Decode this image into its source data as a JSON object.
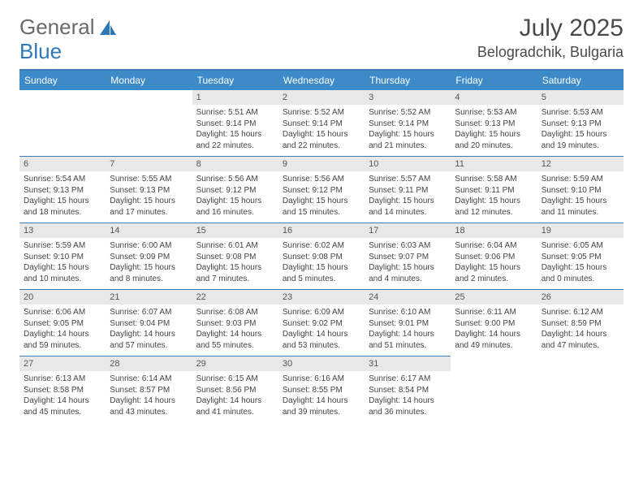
{
  "logo": {
    "text_left": "General",
    "text_right": "Blue",
    "brand_color": "#2f79b8"
  },
  "header": {
    "month_title": "July 2025",
    "location": "Belogradchik, Bulgaria"
  },
  "colors": {
    "header_bg": "#3d8ac9",
    "border": "#3d7cb8",
    "daynum_bg": "#e8e8e8",
    "text_dark": "#444444"
  },
  "day_labels": [
    "Sunday",
    "Monday",
    "Tuesday",
    "Wednesday",
    "Thursday",
    "Friday",
    "Saturday"
  ],
  "weeks": [
    [
      null,
      null,
      {
        "n": "1",
        "sr": "5:51 AM",
        "ss": "9:14 PM",
        "dl": "15 hours and 22 minutes."
      },
      {
        "n": "2",
        "sr": "5:52 AM",
        "ss": "9:14 PM",
        "dl": "15 hours and 22 minutes."
      },
      {
        "n": "3",
        "sr": "5:52 AM",
        "ss": "9:14 PM",
        "dl": "15 hours and 21 minutes."
      },
      {
        "n": "4",
        "sr": "5:53 AM",
        "ss": "9:13 PM",
        "dl": "15 hours and 20 minutes."
      },
      {
        "n": "5",
        "sr": "5:53 AM",
        "ss": "9:13 PM",
        "dl": "15 hours and 19 minutes."
      }
    ],
    [
      {
        "n": "6",
        "sr": "5:54 AM",
        "ss": "9:13 PM",
        "dl": "15 hours and 18 minutes."
      },
      {
        "n": "7",
        "sr": "5:55 AM",
        "ss": "9:13 PM",
        "dl": "15 hours and 17 minutes."
      },
      {
        "n": "8",
        "sr": "5:56 AM",
        "ss": "9:12 PM",
        "dl": "15 hours and 16 minutes."
      },
      {
        "n": "9",
        "sr": "5:56 AM",
        "ss": "9:12 PM",
        "dl": "15 hours and 15 minutes."
      },
      {
        "n": "10",
        "sr": "5:57 AM",
        "ss": "9:11 PM",
        "dl": "15 hours and 14 minutes."
      },
      {
        "n": "11",
        "sr": "5:58 AM",
        "ss": "9:11 PM",
        "dl": "15 hours and 12 minutes."
      },
      {
        "n": "12",
        "sr": "5:59 AM",
        "ss": "9:10 PM",
        "dl": "15 hours and 11 minutes."
      }
    ],
    [
      {
        "n": "13",
        "sr": "5:59 AM",
        "ss": "9:10 PM",
        "dl": "15 hours and 10 minutes."
      },
      {
        "n": "14",
        "sr": "6:00 AM",
        "ss": "9:09 PM",
        "dl": "15 hours and 8 minutes."
      },
      {
        "n": "15",
        "sr": "6:01 AM",
        "ss": "9:08 PM",
        "dl": "15 hours and 7 minutes."
      },
      {
        "n": "16",
        "sr": "6:02 AM",
        "ss": "9:08 PM",
        "dl": "15 hours and 5 minutes."
      },
      {
        "n": "17",
        "sr": "6:03 AM",
        "ss": "9:07 PM",
        "dl": "15 hours and 4 minutes."
      },
      {
        "n": "18",
        "sr": "6:04 AM",
        "ss": "9:06 PM",
        "dl": "15 hours and 2 minutes."
      },
      {
        "n": "19",
        "sr": "6:05 AM",
        "ss": "9:05 PM",
        "dl": "15 hours and 0 minutes."
      }
    ],
    [
      {
        "n": "20",
        "sr": "6:06 AM",
        "ss": "9:05 PM",
        "dl": "14 hours and 59 minutes."
      },
      {
        "n": "21",
        "sr": "6:07 AM",
        "ss": "9:04 PM",
        "dl": "14 hours and 57 minutes."
      },
      {
        "n": "22",
        "sr": "6:08 AM",
        "ss": "9:03 PM",
        "dl": "14 hours and 55 minutes."
      },
      {
        "n": "23",
        "sr": "6:09 AM",
        "ss": "9:02 PM",
        "dl": "14 hours and 53 minutes."
      },
      {
        "n": "24",
        "sr": "6:10 AM",
        "ss": "9:01 PM",
        "dl": "14 hours and 51 minutes."
      },
      {
        "n": "25",
        "sr": "6:11 AM",
        "ss": "9:00 PM",
        "dl": "14 hours and 49 minutes."
      },
      {
        "n": "26",
        "sr": "6:12 AM",
        "ss": "8:59 PM",
        "dl": "14 hours and 47 minutes."
      }
    ],
    [
      {
        "n": "27",
        "sr": "6:13 AM",
        "ss": "8:58 PM",
        "dl": "14 hours and 45 minutes."
      },
      {
        "n": "28",
        "sr": "6:14 AM",
        "ss": "8:57 PM",
        "dl": "14 hours and 43 minutes."
      },
      {
        "n": "29",
        "sr": "6:15 AM",
        "ss": "8:56 PM",
        "dl": "14 hours and 41 minutes."
      },
      {
        "n": "30",
        "sr": "6:16 AM",
        "ss": "8:55 PM",
        "dl": "14 hours and 39 minutes."
      },
      {
        "n": "31",
        "sr": "6:17 AM",
        "ss": "8:54 PM",
        "dl": "14 hours and 36 minutes."
      },
      null,
      null
    ]
  ],
  "labels": {
    "sunrise": "Sunrise:",
    "sunset": "Sunset:",
    "daylight": "Daylight:"
  }
}
